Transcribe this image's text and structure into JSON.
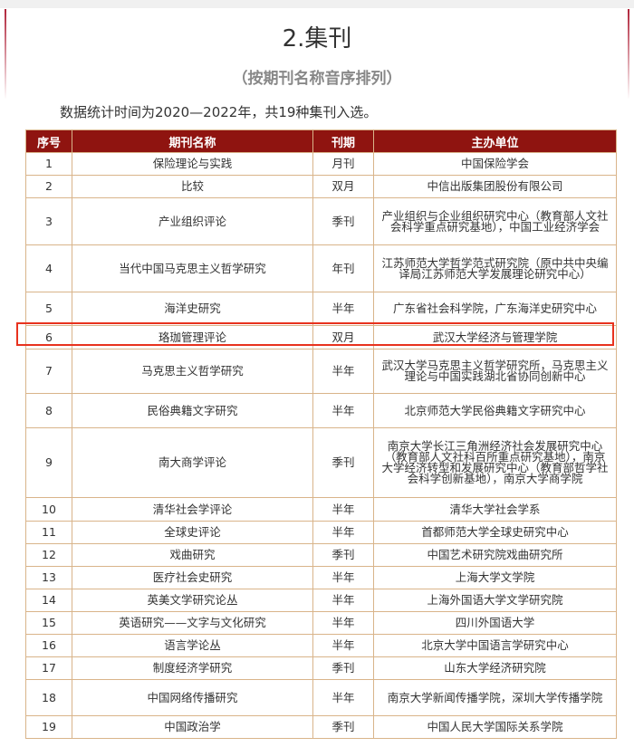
{
  "title": "2.集刊",
  "subtitle": "（按期刊名称音序排列）",
  "intro": "数据统计时间为2020—2022年，共19种集刊入选。",
  "table": {
    "headers": [
      "序号",
      "期刊名称",
      "刊期",
      "主办单位"
    ],
    "highlighted_row": 6,
    "rows": [
      [
        "1",
        "保险理论与实践",
        "月刊",
        "中国保险学会"
      ],
      [
        "2",
        "比较",
        "双月",
        "中信出版集团股份有限公司"
      ],
      [
        "3",
        "产业组织评论",
        "季刊",
        "产业组织与企业组织研究中心（教育部人文社会科学重点研究基地），中国工业经济学会"
      ],
      [
        "4",
        "当代中国马克思主义哲学研究",
        "年刊",
        "江苏师范大学哲学范式研究院（原中共中央编译局江苏师范大学发展理论研究中心）"
      ],
      [
        "5",
        "海洋史研究",
        "半年",
        "广东省社会科学院，广东海洋史研究中心"
      ],
      [
        "6",
        "珞珈管理评论",
        "双月",
        "武汉大学经济与管理学院"
      ],
      [
        "7",
        "马克思主义哲学研究",
        "半年",
        "武汉大学马克思主义哲学研究所，马克思主义理论与中国实践湖北省协同创新中心"
      ],
      [
        "8",
        "民俗典籍文字研究",
        "半年",
        "北京师范大学民俗典籍文字研究中心"
      ],
      [
        "9",
        "南大商学评论",
        "季刊",
        "南京大学长江三角洲经济社会发展研究中心（教育部人文社科百所重点研究基地），南京大学经济转型和发展研究中心（教育部哲学社会科学创新基地），南京大学商学院"
      ],
      [
        "10",
        "清华社会学评论",
        "半年",
        "清华大学社会学系"
      ],
      [
        "11",
        "全球史评论",
        "半年",
        "首都师范大学全球史研究中心"
      ],
      [
        "12",
        "戏曲研究",
        "季刊",
        "中国艺术研究院戏曲研究所"
      ],
      [
        "13",
        "医疗社会史研究",
        "半年",
        "上海大学文学院"
      ],
      [
        "14",
        "英美文学研究论丛",
        "半年",
        "上海外国语大学文学研究院"
      ],
      [
        "15",
        "英语研究——文字与文化研究",
        "半年",
        "四川外国语大学"
      ],
      [
        "16",
        "语言学论丛",
        "半年",
        "北京大学中国语言学研究中心"
      ],
      [
        "17",
        "制度经济学研究",
        "季刊",
        "山东大学经济研究院"
      ],
      [
        "18",
        "中国网络传播研究",
        "半年",
        "南京大学新闻传播学院，深圳大学传播学院"
      ],
      [
        "19",
        "中国政治学",
        "季刊",
        "中国人民大学国际关系学院"
      ]
    ]
  },
  "colors": {
    "header_bg": "#8f1410",
    "border": "#d9b48a",
    "highlight": "#e8321e"
  }
}
